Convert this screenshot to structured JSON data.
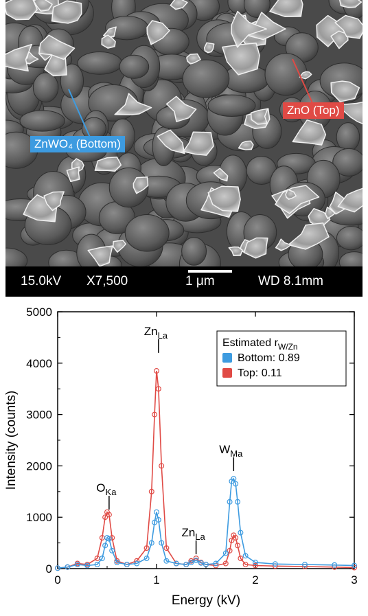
{
  "sem_image": {
    "labels": {
      "bottom": "ZnWO₄ (Bottom)",
      "top": "ZnO (Top)"
    },
    "label_colors": {
      "bottom": "#3d9be0",
      "top": "#e04a45"
    },
    "info_bar": {
      "voltage": "15.0kV",
      "magnification": "X7,500",
      "scale": "1 μm",
      "working_distance": "WD 8.1mm"
    }
  },
  "chart_data": {
    "type": "line",
    "xlabel": "Energy (kV)",
    "ylabel": "Intensity (counts)",
    "xlim": [
      0,
      3
    ],
    "ylim": [
      0,
      5000
    ],
    "x_ticks": [
      "0",
      "1",
      "2",
      "3"
    ],
    "y_ticks": [
      "0",
      "1000",
      "2000",
      "3000",
      "4000",
      "5000"
    ],
    "legend": {
      "title": "Estimated r",
      "title_subscript": "W/Zn",
      "placement": "top-right"
    },
    "series": [
      {
        "name": "Bottom: 0.89",
        "color": "#3d9be0",
        "x": [
          0,
          0.1,
          0.2,
          0.3,
          0.4,
          0.45,
          0.48,
          0.5,
          0.52,
          0.55,
          0.6,
          0.7,
          0.8,
          0.9,
          0.95,
          0.98,
          1.0,
          1.02,
          1.05,
          1.1,
          1.2,
          1.3,
          1.35,
          1.4,
          1.45,
          1.5,
          1.6,
          1.7,
          1.74,
          1.76,
          1.78,
          1.8,
          1.82,
          1.85,
          1.9,
          2.0,
          2.2,
          2.5,
          2.8,
          3.0
        ],
        "y": [
          10,
          30,
          80,
          60,
          80,
          200,
          450,
          600,
          580,
          350,
          120,
          80,
          100,
          200,
          500,
          900,
          1100,
          950,
          500,
          150,
          100,
          80,
          120,
          160,
          110,
          80,
          100,
          300,
          1300,
          1700,
          1750,
          1650,
          1300,
          700,
          250,
          120,
          90,
          80,
          70,
          60
        ]
      },
      {
        "name": "Top: 0.11",
        "color": "#e04a45",
        "x": [
          0,
          0.1,
          0.2,
          0.3,
          0.4,
          0.45,
          0.48,
          0.5,
          0.52,
          0.55,
          0.6,
          0.7,
          0.8,
          0.9,
          0.95,
          0.98,
          1.0,
          1.02,
          1.05,
          1.1,
          1.2,
          1.3,
          1.35,
          1.4,
          1.45,
          1.5,
          1.6,
          1.7,
          1.74,
          1.76,
          1.78,
          1.8,
          1.82,
          1.85,
          1.9,
          2.0,
          2.2,
          2.5,
          2.8,
          3.0
        ],
        "y": [
          10,
          30,
          100,
          80,
          200,
          600,
          1000,
          1100,
          1050,
          600,
          150,
          80,
          150,
          400,
          1500,
          3000,
          3850,
          3500,
          2000,
          400,
          100,
          80,
          150,
          200,
          120,
          80,
          60,
          100,
          350,
          550,
          650,
          600,
          450,
          200,
          80,
          60,
          50,
          40,
          30,
          20
        ]
      }
    ],
    "annotations": [
      {
        "text": "O",
        "sub": "Ka",
        "x": 0.52,
        "y": 1150
      },
      {
        "text": "Zn",
        "sub": "La",
        "x": 1.02,
        "y": 4200
      },
      {
        "text": "Zn",
        "sub": "La",
        "x": 1.4,
        "y": 280
      },
      {
        "text": "W",
        "sub": "Ma",
        "x": 1.78,
        "y": 1900
      }
    ]
  }
}
